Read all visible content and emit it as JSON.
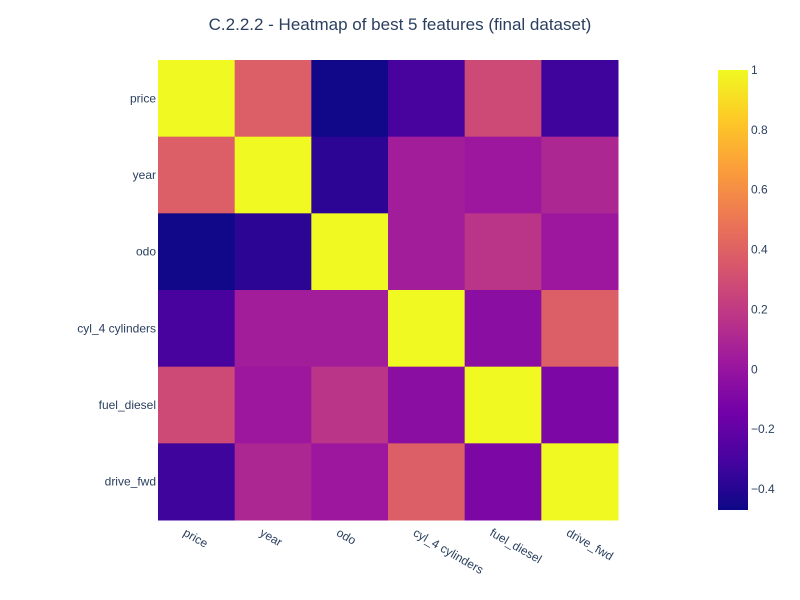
{
  "chart_data": {
    "type": "heatmap",
    "title": "C.2.2.2 - Heatmap of best 5 features (final dataset)",
    "x_categories": [
      "price",
      "year",
      "odo",
      "cyl_4 cylinders",
      "fuel_diesel",
      "drive_fwd"
    ],
    "y_categories": [
      "price",
      "year",
      "odo",
      "cyl_4 cylinders",
      "fuel_diesel",
      "drive_fwd"
    ],
    "z": [
      [
        1.0,
        0.38,
        -0.46,
        -0.3,
        0.28,
        -0.33
      ],
      [
        0.38,
        1.0,
        -0.38,
        0.05,
        0.02,
        0.1
      ],
      [
        -0.46,
        -0.38,
        1.0,
        0.05,
        0.17,
        0.02
      ],
      [
        -0.3,
        0.05,
        0.05,
        1.0,
        -0.05,
        0.38
      ],
      [
        0.28,
        0.02,
        0.17,
        -0.05,
        1.0,
        -0.1
      ],
      [
        -0.33,
        0.1,
        0.02,
        0.38,
        -0.1,
        1.0
      ]
    ],
    "colorscale": "plasma",
    "zmin": -0.47,
    "zmax": 1.0,
    "colorbar": {
      "ticks": [
        1,
        0.8,
        0.6,
        0.4,
        0.2,
        0,
        -0.2,
        -0.4
      ],
      "tick_labels": [
        "1",
        "0.8",
        "0.6",
        "0.4",
        "0.2",
        "0",
        "−0.2",
        "−0.4"
      ]
    },
    "x_tick_angle": "rotated 30 degrees",
    "legend": "colorbar-right"
  }
}
